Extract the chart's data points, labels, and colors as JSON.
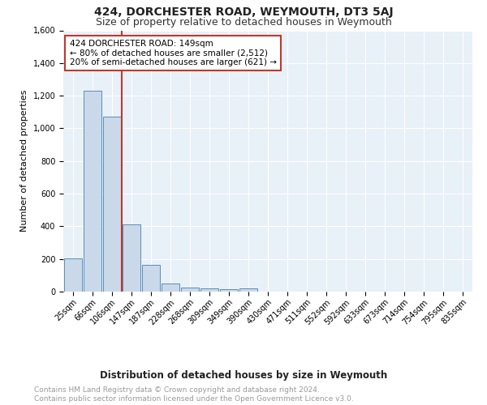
{
  "title": "424, DORCHESTER ROAD, WEYMOUTH, DT3 5AJ",
  "subtitle": "Size of property relative to detached houses in Weymouth",
  "xlabel": "Distribution of detached houses by size in Weymouth",
  "ylabel": "Number of detached properties",
  "bar_labels": [
    "25sqm",
    "66sqm",
    "106sqm",
    "147sqm",
    "187sqm",
    "228sqm",
    "268sqm",
    "309sqm",
    "349sqm",
    "390sqm",
    "430sqm",
    "471sqm",
    "511sqm",
    "552sqm",
    "592sqm",
    "633sqm",
    "673sqm",
    "714sqm",
    "754sqm",
    "795sqm",
    "835sqm"
  ],
  "bar_values": [
    205,
    1230,
    1070,
    410,
    165,
    48,
    27,
    20,
    15,
    18,
    0,
    0,
    0,
    0,
    0,
    0,
    0,
    0,
    0,
    0,
    0
  ],
  "bar_color": "#c9d9ea",
  "bar_edge_color": "#5b8db8",
  "vline_color": "#c0392b",
  "vline_pos": 2.5,
  "annotation_text": "424 DORCHESTER ROAD: 149sqm\n← 80% of detached houses are smaller (2,512)\n20% of semi-detached houses are larger (621) →",
  "annotation_box_color": "#ffffff",
  "annotation_box_edge": "#c0392b",
  "ylim": [
    0,
    1600
  ],
  "yticks": [
    0,
    200,
    400,
    600,
    800,
    1000,
    1200,
    1400,
    1600
  ],
  "footer_text": "Contains HM Land Registry data © Crown copyright and database right 2024.\nContains public sector information licensed under the Open Government Licence v3.0.",
  "bg_color": "#e8f0f8",
  "fig_bg_color": "#ffffff",
  "title_fontsize": 10,
  "subtitle_fontsize": 9,
  "xlabel_fontsize": 8.5,
  "ylabel_fontsize": 8,
  "tick_fontsize": 7,
  "annotation_fontsize": 7.5,
  "footer_fontsize": 6.5
}
